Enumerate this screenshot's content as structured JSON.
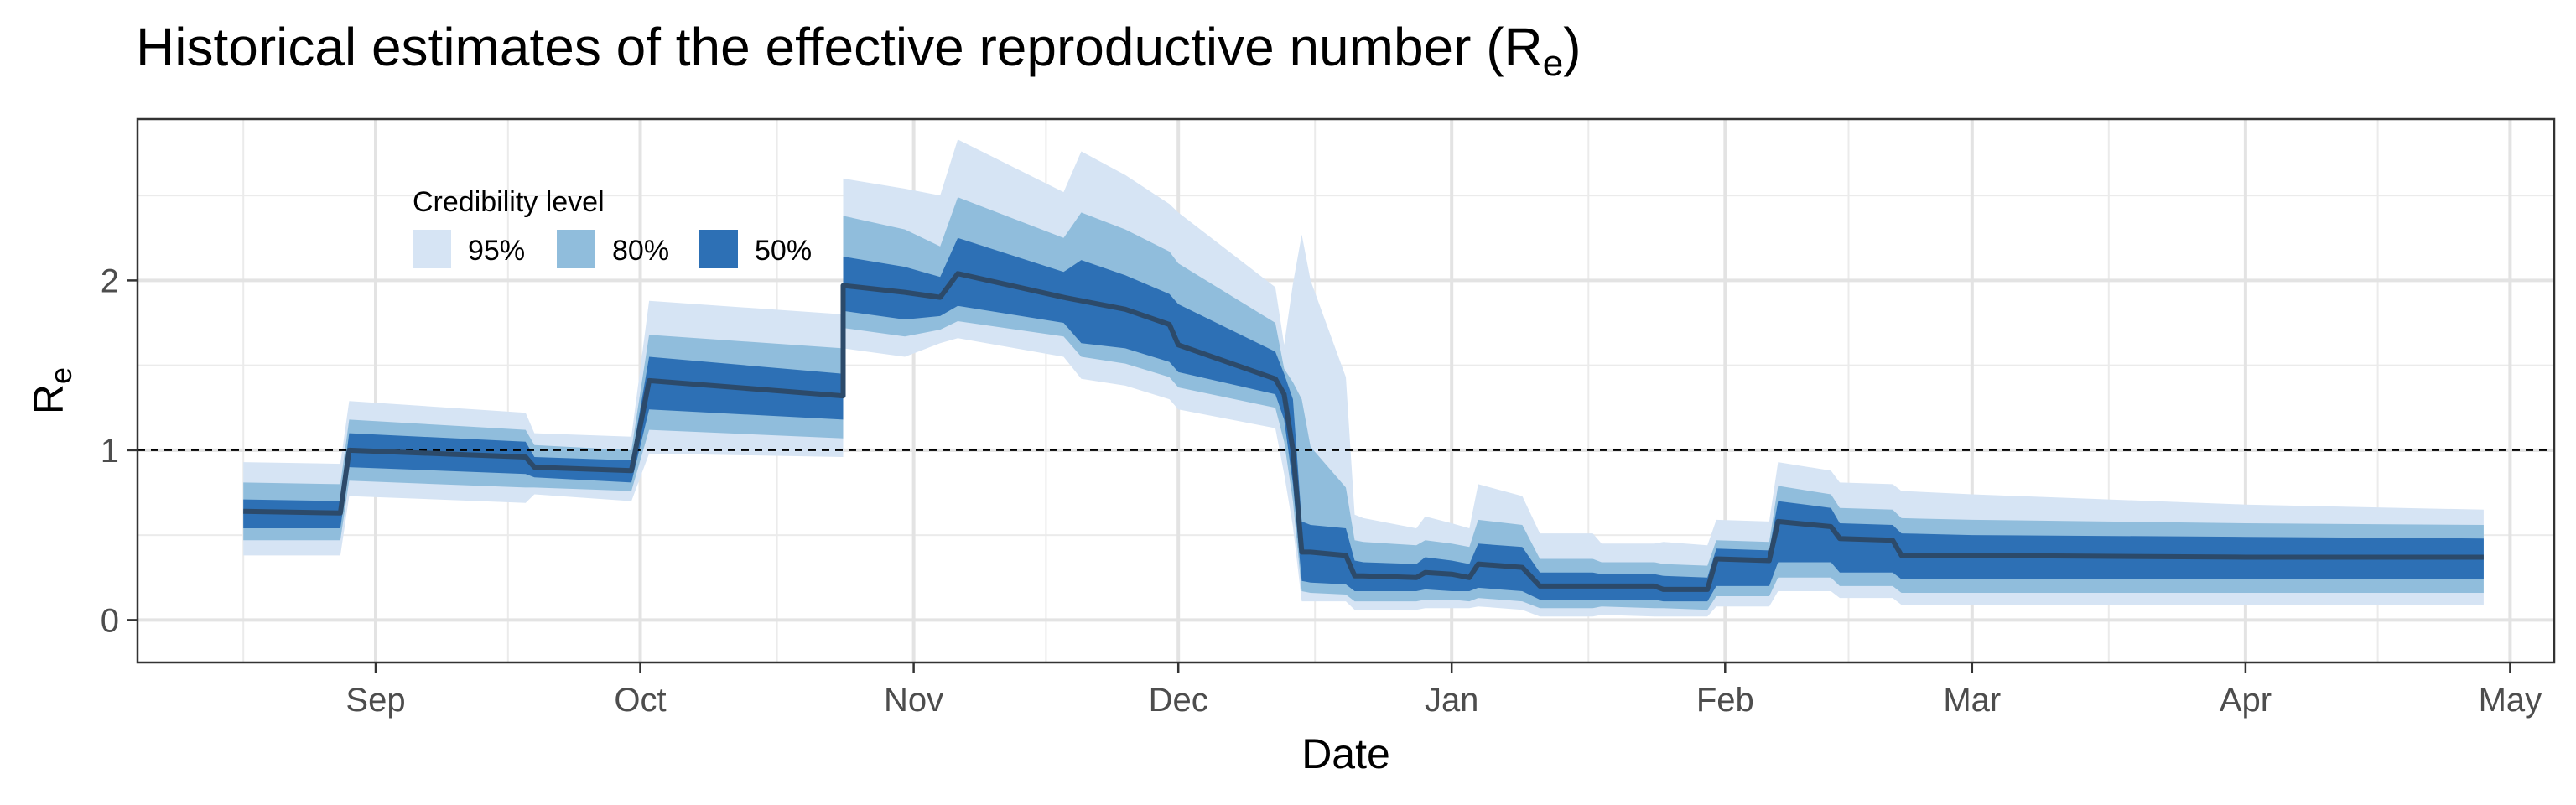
{
  "chart_data": {
    "type": "area",
    "title": "Historical estimates of the effective reproductive number (R",
    "title_subscript": "e",
    "title_suffix": ")",
    "xlabel": "Date",
    "ylabel": "R",
    "ylabel_subscript": "e",
    "ylim": [
      -0.25,
      2.95
    ],
    "xlim": [
      "2020-08-05",
      "2021-05-06"
    ],
    "grid": true,
    "reference_line": {
      "y": 1,
      "style": "dashed"
    },
    "x_ticks": [
      {
        "date": "2020-09-01",
        "label": "Sep"
      },
      {
        "date": "2020-10-01",
        "label": "Oct"
      },
      {
        "date": "2020-11-01",
        "label": "Nov"
      },
      {
        "date": "2020-12-01",
        "label": "Dec"
      },
      {
        "date": "2021-01-01",
        "label": "Jan"
      },
      {
        "date": "2021-02-01",
        "label": "Feb"
      },
      {
        "date": "2021-03-01",
        "label": "Mar"
      },
      {
        "date": "2021-04-01",
        "label": "Apr"
      },
      {
        "date": "2021-05-01",
        "label": "May"
      }
    ],
    "y_ticks": [
      {
        "value": 0,
        "label": "0"
      },
      {
        "value": 1,
        "label": "1"
      },
      {
        "value": 2,
        "label": "2"
      }
    ],
    "legend": {
      "title": "Credibility level",
      "placement": "top-left",
      "items": [
        {
          "label": "95%",
          "color": "#d6e4f4"
        },
        {
          "label": "80%",
          "color": "#90bddc"
        },
        {
          "label": "50%",
          "color": "#2d70b5"
        }
      ]
    },
    "median_color": "#2c4a6a",
    "x": [
      "2020-08-17",
      "2020-08-28",
      "2020-08-29",
      "2020-09-18",
      "2020-09-19",
      "2020-09-30",
      "2020-10-02",
      "2020-10-24",
      "2020-10-24",
      "2020-10-31",
      "2020-11-04",
      "2020-11-06",
      "2020-11-18",
      "2020-11-20",
      "2020-11-25",
      "2020-11-30",
      "2020-12-01",
      "2020-12-12",
      "2020-12-13",
      "2020-12-14",
      "2020-12-15",
      "2020-12-16",
      "2020-12-20",
      "2020-12-21",
      "2020-12-22",
      "2020-12-28",
      "2020-12-29",
      "2021-01-01",
      "2021-01-03",
      "2021-01-04",
      "2021-01-09",
      "2021-01-11",
      "2021-01-17",
      "2021-01-18",
      "2021-01-24",
      "2021-01-25",
      "2021-01-30",
      "2021-01-31",
      "2021-02-06",
      "2021-02-07",
      "2021-02-13",
      "2021-02-14",
      "2021-02-20",
      "2021-02-21",
      "2021-03-01",
      "2021-04-01",
      "2021-04-28"
    ],
    "series": [
      {
        "name": "95%",
        "lower": [
          0.38,
          0.38,
          0.73,
          0.69,
          0.74,
          0.7,
          0.98,
          0.96,
          1.6,
          1.55,
          1.63,
          1.66,
          1.55,
          1.42,
          1.38,
          1.3,
          1.24,
          1.13,
          0.86,
          0.55,
          0.11,
          0.11,
          0.11,
          0.06,
          0.06,
          0.06,
          0.07,
          0.07,
          0.07,
          0.08,
          0.06,
          0.02,
          0.02,
          0.03,
          0.02,
          0.02,
          0.02,
          0.08,
          0.08,
          0.17,
          0.17,
          0.13,
          0.13,
          0.09,
          0.09,
          0.09,
          0.09
        ],
        "upper": [
          0.93,
          0.92,
          1.29,
          1.22,
          1.1,
          1.08,
          1.88,
          1.8,
          2.6,
          2.54,
          2.5,
          2.83,
          2.52,
          2.76,
          2.62,
          2.45,
          2.4,
          1.96,
          1.62,
          1.98,
          2.27,
          2.0,
          1.43,
          0.62,
          0.6,
          0.54,
          0.61,
          0.57,
          0.54,
          0.8,
          0.73,
          0.51,
          0.51,
          0.45,
          0.45,
          0.46,
          0.44,
          0.59,
          0.58,
          0.93,
          0.88,
          0.81,
          0.8,
          0.76,
          0.74,
          0.68,
          0.65
        ]
      },
      {
        "name": "80%",
        "lower": [
          0.47,
          0.47,
          0.82,
          0.78,
          0.78,
          0.76,
          1.12,
          1.07,
          1.72,
          1.67,
          1.71,
          1.76,
          1.67,
          1.55,
          1.51,
          1.43,
          1.37,
          1.25,
          1.05,
          0.7,
          0.17,
          0.16,
          0.15,
          0.11,
          0.11,
          0.11,
          0.12,
          0.12,
          0.11,
          0.13,
          0.11,
          0.07,
          0.07,
          0.08,
          0.07,
          0.07,
          0.06,
          0.14,
          0.14,
          0.25,
          0.25,
          0.2,
          0.2,
          0.16,
          0.16,
          0.16,
          0.16
        ],
        "upper": [
          0.81,
          0.8,
          1.18,
          1.12,
          1.03,
          1.0,
          1.68,
          1.6,
          2.38,
          2.3,
          2.2,
          2.49,
          2.25,
          2.4,
          2.3,
          2.17,
          2.1,
          1.75,
          1.48,
          1.4,
          1.3,
          1.02,
          0.78,
          0.47,
          0.46,
          0.44,
          0.47,
          0.45,
          0.43,
          0.59,
          0.56,
          0.36,
          0.36,
          0.34,
          0.34,
          0.33,
          0.32,
          0.47,
          0.46,
          0.79,
          0.74,
          0.66,
          0.65,
          0.6,
          0.59,
          0.57,
          0.56
        ]
      },
      {
        "name": "50%",
        "lower": [
          0.54,
          0.54,
          0.9,
          0.86,
          0.84,
          0.81,
          1.24,
          1.18,
          1.82,
          1.77,
          1.79,
          1.85,
          1.75,
          1.63,
          1.6,
          1.52,
          1.46,
          1.33,
          1.18,
          0.8,
          0.23,
          0.22,
          0.21,
          0.17,
          0.17,
          0.17,
          0.18,
          0.17,
          0.17,
          0.19,
          0.17,
          0.12,
          0.12,
          0.12,
          0.12,
          0.11,
          0.11,
          0.2,
          0.2,
          0.34,
          0.34,
          0.28,
          0.28,
          0.24,
          0.24,
          0.24,
          0.24
        ],
        "upper": [
          0.71,
          0.7,
          1.1,
          1.05,
          0.96,
          0.94,
          1.55,
          1.45,
          2.14,
          2.08,
          2.02,
          2.25,
          2.05,
          2.12,
          2.03,
          1.92,
          1.86,
          1.58,
          1.45,
          1.3,
          0.58,
          0.56,
          0.54,
          0.35,
          0.34,
          0.33,
          0.37,
          0.35,
          0.33,
          0.45,
          0.43,
          0.28,
          0.28,
          0.27,
          0.27,
          0.26,
          0.25,
          0.42,
          0.41,
          0.7,
          0.66,
          0.57,
          0.56,
          0.51,
          0.5,
          0.49,
          0.48
        ]
      },
      {
        "name": "median",
        "values": [
          0.64,
          0.63,
          1.0,
          0.96,
          0.9,
          0.88,
          1.41,
          1.32,
          1.97,
          1.93,
          1.9,
          2.04,
          1.9,
          1.88,
          1.83,
          1.74,
          1.62,
          1.42,
          1.33,
          1.0,
          0.4,
          0.4,
          0.38,
          0.26,
          0.26,
          0.25,
          0.28,
          0.27,
          0.25,
          0.33,
          0.31,
          0.2,
          0.2,
          0.2,
          0.2,
          0.18,
          0.18,
          0.36,
          0.35,
          0.58,
          0.55,
          0.48,
          0.47,
          0.38,
          0.38,
          0.37,
          0.37
        ]
      }
    ]
  }
}
